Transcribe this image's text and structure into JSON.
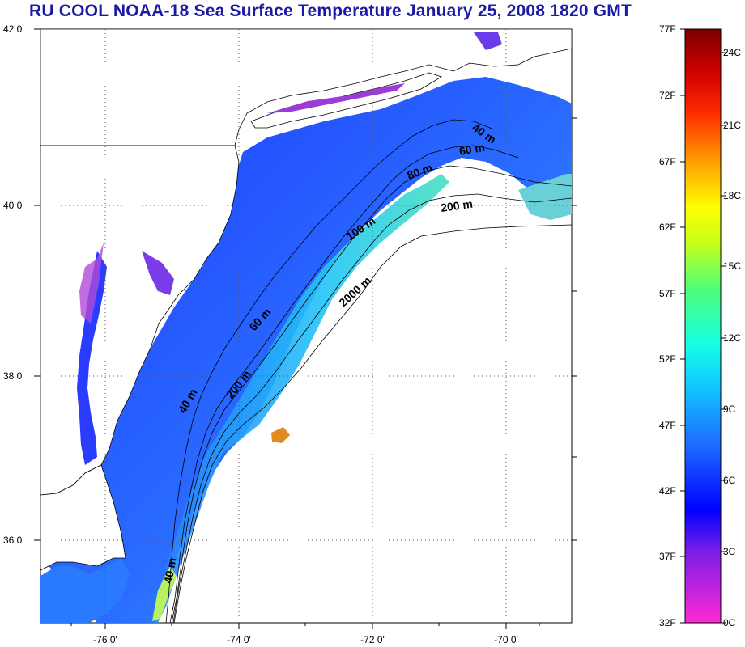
{
  "title": "RU COOL  NOAA-18 Sea Surface Temperature January 25, 2008 1820 GMT",
  "lat_labels": [
    "42 0'",
    "40 0'",
    "38 0'",
    "36 0'"
  ],
  "lon_labels": [
    "-76 0'",
    "-74 0'",
    "-72 0'",
    "-70 0'"
  ],
  "contour_labels": [
    "40 m",
    "60 m",
    "80 m",
    "200 m",
    "100 m",
    "2000 m",
    "60 m",
    "200 m",
    "40 m",
    "40 m"
  ],
  "colorbar": {
    "fahrenheit": [
      "77F",
      "72F",
      "67F",
      "62F",
      "57F",
      "52F",
      "47F",
      "42F",
      "37F",
      "32F"
    ],
    "celsius": [
      "24C",
      "21C",
      "18C",
      "15C",
      "12C",
      "9C",
      "6C",
      "3C",
      "0C"
    ]
  },
  "colors": {
    "title": "#1a1aa6",
    "land": "#ffffff",
    "cold_water": "#1e3cff",
    "warm_water": "#44ddcc"
  }
}
